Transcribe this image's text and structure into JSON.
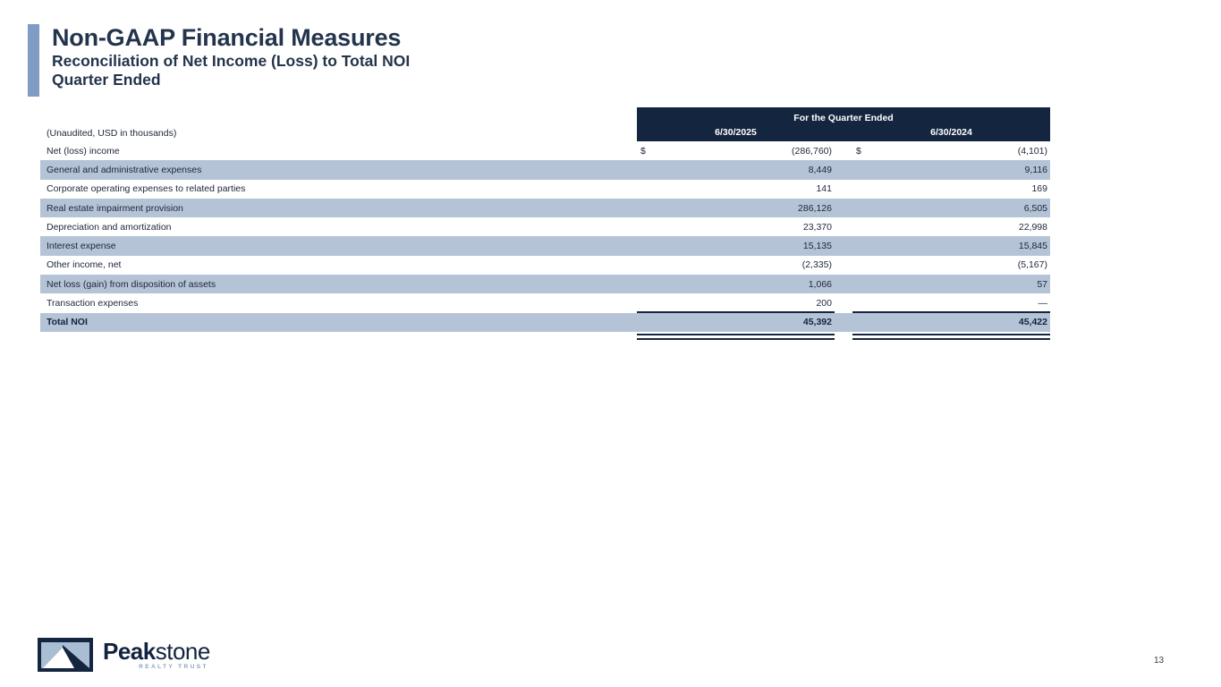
{
  "slide": {
    "title": "Non-GAAP Financial Measures",
    "subtitle1": "Reconciliation of Net Income (Loss) to Total NOI",
    "subtitle2": "Quarter Ended",
    "page_number": "13"
  },
  "table": {
    "note": "(Unaudited, USD in thousands)",
    "header_group": "For the Quarter Ended",
    "columns": [
      "6/30/2025",
      "6/30/2024"
    ],
    "currency_symbol": "$",
    "rows": [
      {
        "label": "Net (loss) income",
        "v2025": "(286,760)",
        "v2024": "(4,101)",
        "shaded": false,
        "dollar": true
      },
      {
        "label": "General and administrative expenses",
        "v2025": "8,449",
        "v2024": "9,116",
        "shaded": true
      },
      {
        "label": "Corporate operating expenses to related parties",
        "v2025": "141",
        "v2024": "169",
        "shaded": false
      },
      {
        "label": "Real estate impairment provision",
        "v2025": "286,126",
        "v2024": "6,505",
        "shaded": true
      },
      {
        "label": "Depreciation and amortization",
        "v2025": "23,370",
        "v2024": "22,998",
        "shaded": false
      },
      {
        "label": "Interest expense",
        "v2025": "15,135",
        "v2024": "15,845",
        "shaded": true
      },
      {
        "label": "Other income, net",
        "v2025": "(2,335)",
        "v2024": "(5,167)",
        "shaded": false
      },
      {
        "label": "Net loss (gain) from disposition of assets",
        "v2025": "1,066",
        "v2024": "57",
        "shaded": true
      },
      {
        "label": "Transaction expenses",
        "v2025": "200",
        "v2024": "—",
        "shaded": false
      },
      {
        "label": "Total NOI",
        "v2025": "45,392",
        "v2024": "45,422",
        "shaded": true,
        "total": true
      }
    ]
  },
  "logo": {
    "brand_bold": "Peak",
    "brand_light": "stone",
    "tagline": "REALTY TRUST"
  },
  "colors": {
    "header_navy": "#142540",
    "row_shade": "#b5c3d7",
    "accent_bar": "#7e9cc4",
    "title_navy": "#24344c",
    "tagline_blue": "#8ba2bd"
  }
}
